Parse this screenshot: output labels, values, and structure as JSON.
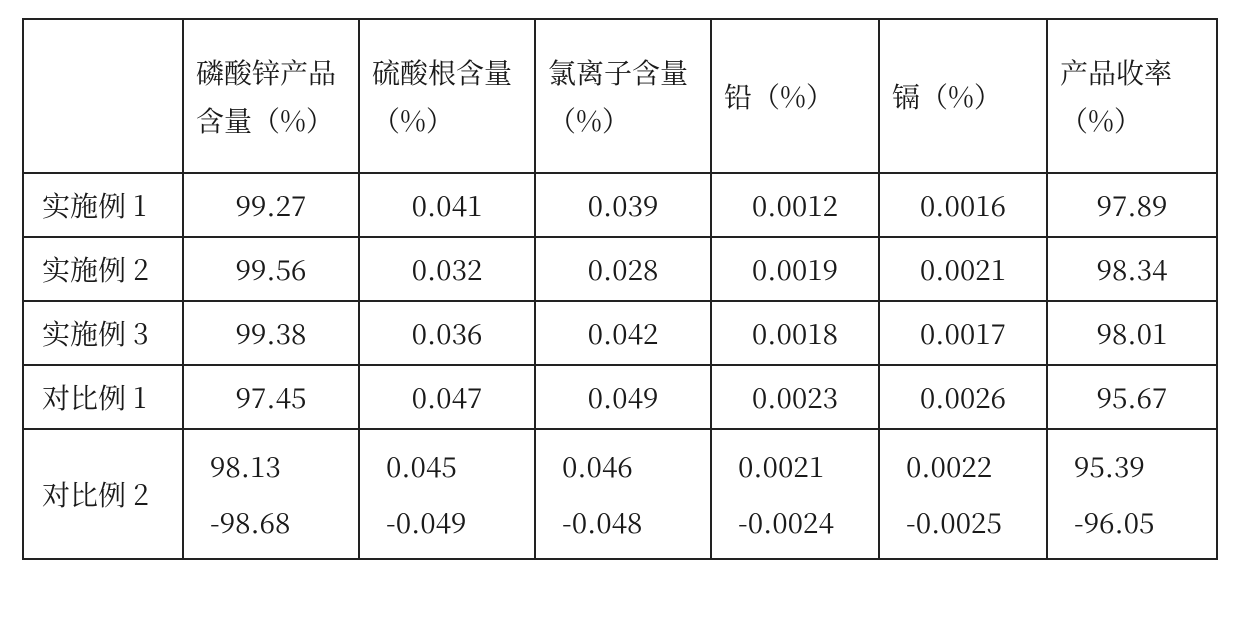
{
  "table": {
    "type": "table",
    "background_color": "#ffffff",
    "border_color": "#222222",
    "text_color": "#1a1a1a",
    "header_fontsize": 28,
    "cell_fontsize": 28,
    "columns": [
      {
        "key": "row_label",
        "header": ""
      },
      {
        "key": "zinc_phosphate_content_pct",
        "header": "磷酸锌产品含量（%）"
      },
      {
        "key": "sulfate_content_pct",
        "header": "硫酸根含量（%）"
      },
      {
        "key": "chloride_content_pct",
        "header": "氯离子含量（%）"
      },
      {
        "key": "lead_pct",
        "header": "铅（%）"
      },
      {
        "key": "cadmium_pct",
        "header": "镉（%）"
      },
      {
        "key": "product_yield_pct",
        "header": "产品收率（%）"
      }
    ],
    "rows": [
      {
        "row_label": "实施例 1",
        "zinc_phosphate_content_pct": "99.27",
        "sulfate_content_pct": "0.041",
        "chloride_content_pct": "0.039",
        "lead_pct": "0.0012",
        "cadmium_pct": "0.0016",
        "product_yield_pct": "97.89"
      },
      {
        "row_label": "实施例 2",
        "zinc_phosphate_content_pct": "99.56",
        "sulfate_content_pct": "0.032",
        "chloride_content_pct": "0.028",
        "lead_pct": "0.0019",
        "cadmium_pct": "0.0021",
        "product_yield_pct": "98.34"
      },
      {
        "row_label": "实施例 3",
        "zinc_phosphate_content_pct": "99.38",
        "sulfate_content_pct": "0.036",
        "chloride_content_pct": "0.042",
        "lead_pct": "0.0018",
        "cadmium_pct": "0.0017",
        "product_yield_pct": "98.01"
      },
      {
        "row_label": "对比例 1",
        "zinc_phosphate_content_pct": "97.45",
        "sulfate_content_pct": "0.047",
        "chloride_content_pct": "0.049",
        "lead_pct": "0.0023",
        "cadmium_pct": "0.0026",
        "product_yield_pct": "95.67"
      }
    ],
    "range_row": {
      "row_label": "对比例 2",
      "zinc_phosphate_content_pct": {
        "lo": "98.13",
        "hi": "-98.68"
      },
      "sulfate_content_pct": {
        "lo": "0.045",
        "hi": "-0.049"
      },
      "chloride_content_pct": {
        "lo": "0.046",
        "hi": "-0.048"
      },
      "lead_pct": {
        "lo": "0.0021",
        "hi": "-0.0024"
      },
      "cadmium_pct": {
        "lo": "0.0022",
        "hi": "-0.0025"
      },
      "product_yield_pct": {
        "lo": "95.39",
        "hi": "-96.05"
      }
    }
  }
}
